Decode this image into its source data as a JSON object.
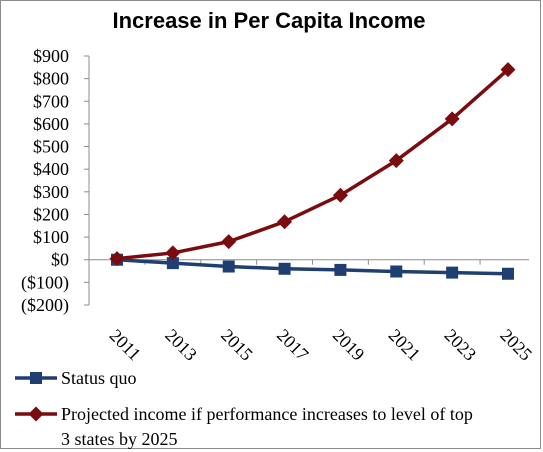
{
  "chart_data": {
    "type": "line",
    "title": "Increase in Per Capita Income",
    "categories": [
      "2011",
      "2013",
      "2015",
      "2017",
      "2019",
      "2021",
      "2023",
      "2025"
    ],
    "y_tick_labels": [
      "$900",
      "$800",
      "$700",
      "$600",
      "$500",
      "$400",
      "$300",
      "$200",
      "$100",
      "$0",
      "($100)",
      "($200)"
    ],
    "y_tick_values": [
      900,
      800,
      700,
      600,
      500,
      400,
      300,
      200,
      100,
      0,
      -100,
      -200
    ],
    "ylim": [
      -200,
      900
    ],
    "grid": false,
    "legend_position": "bottom",
    "series": [
      {
        "name": "Status quo",
        "color": "#1f3f73",
        "marker": "square",
        "values": [
          0,
          -15,
          -30,
          -40,
          -45,
          -52,
          -57,
          -62
        ]
      },
      {
        "name": "Projected income if performance increases to level of top 3 states by 2025",
        "legend_lines": [
          "Projected income if performance increases to level of top",
          "3 states by 2025"
        ],
        "color": "#7a0c10",
        "marker": "diamond",
        "values": [
          5,
          30,
          80,
          168,
          285,
          438,
          622,
          840
        ]
      }
    ]
  }
}
